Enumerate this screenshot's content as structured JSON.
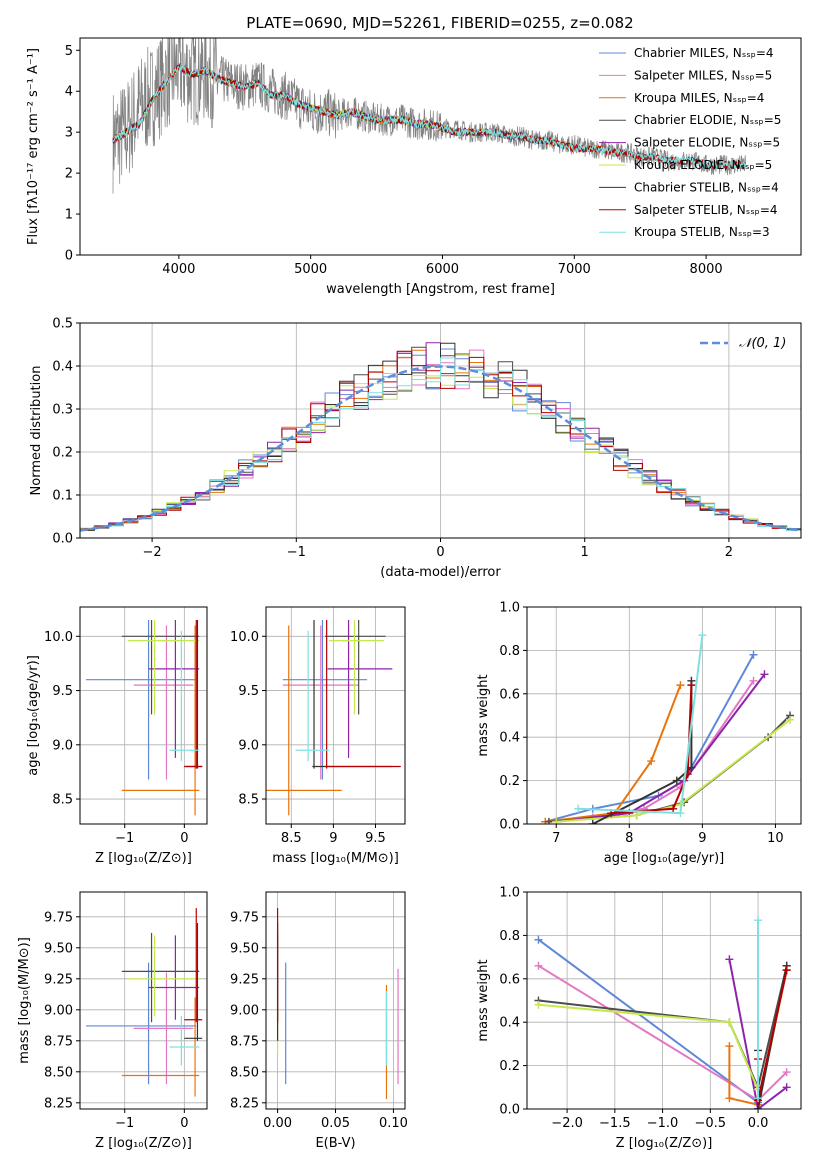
{
  "chart_data": [
    {
      "id": "spectrum",
      "type": "line",
      "title": "PLATE=0690, MJD=52261, FIBERID=0255, z=0.082",
      "xlabel": "wavelength [Angstrom, rest frame]",
      "ylabel": "Flux [fλ10⁻¹⁷ erg cm⁻² s⁻¹ A⁻¹]",
      "xlim": [
        3250,
        8720
      ],
      "ylim": [
        0,
        5.3
      ],
      "xticks": [
        4000,
        5000,
        6000,
        7000,
        8000
      ],
      "yticks": [
        0,
        1,
        2,
        3,
        4,
        5
      ],
      "grid": false,
      "legend_position": "top-right",
      "observed": {
        "name": "",
        "color": "#808080",
        "x": [
          3500,
          3600,
          3700,
          3800,
          3900,
          4000,
          4100,
          4200,
          4300,
          4400,
          4500,
          4600,
          4700,
          4800,
          4900,
          5000,
          5100,
          5200,
          5300,
          5400,
          5500,
          5600,
          5700,
          5800,
          5900,
          6000,
          6100,
          6200,
          6300,
          6400,
          6500,
          6600,
          6700,
          6800,
          6900,
          7000,
          7100,
          7200,
          7300,
          7400,
          7500,
          7600,
          7700,
          7800,
          7900,
          8000,
          8100,
          8200,
          8300
        ],
        "y": [
          2.8,
          3.0,
          3.6,
          3.9,
          4.3,
          4.6,
          4.4,
          4.5,
          4.3,
          4.2,
          4.1,
          4.2,
          4.0,
          3.9,
          3.7,
          3.5,
          3.5,
          3.4,
          3.5,
          3.4,
          3.3,
          3.3,
          3.3,
          3.2,
          3.2,
          3.1,
          3.1,
          3.0,
          3.0,
          3.0,
          2.9,
          2.9,
          2.8,
          2.8,
          2.7,
          2.7,
          2.6,
          2.6,
          2.5,
          2.5,
          2.4,
          2.4,
          2.3,
          2.3,
          2.3,
          2.2,
          2.2,
          2.2,
          2.2
        ]
      },
      "model_x": [
        3500,
        3600,
        3700,
        3800,
        3900,
        4000,
        4100,
        4200,
        4300,
        4400,
        4500,
        4600,
        4700,
        4800,
        4900,
        5000,
        5100,
        5200,
        5300,
        5400,
        5500,
        5600,
        5700,
        5800,
        5900,
        6000,
        6100,
        6200,
        6300,
        6400,
        6500,
        6600,
        6700,
        6800,
        6900,
        7000,
        7100,
        7200,
        7300,
        7400,
        7500,
        7600,
        7700,
        7800,
        7900,
        8000,
        8100,
        8200,
        8300
      ],
      "model_y": [
        2.8,
        3.0,
        3.2,
        3.8,
        4.2,
        4.6,
        4.4,
        4.5,
        4.3,
        4.2,
        4.1,
        4.2,
        3.9,
        3.9,
        3.7,
        3.6,
        3.5,
        3.4,
        3.5,
        3.4,
        3.3,
        3.3,
        3.3,
        3.2,
        3.2,
        3.1,
        3.0,
        3.0,
        3.0,
        3.0,
        2.9,
        2.9,
        2.8,
        2.8,
        2.7,
        2.6,
        2.6,
        2.6,
        2.5,
        2.5,
        2.4,
        2.4,
        2.3,
        2.3,
        2.3,
        2.2,
        2.2,
        2.2,
        2.2
      ],
      "models": [
        {
          "name": "Chabrier MILES, Nₛₛₚ=4",
          "color": "#5f87d8",
          "xmax": 7400
        },
        {
          "name": "Salpeter MILES, Nₛₛₚ=5",
          "color": "#e377c2",
          "xmax": 7400
        },
        {
          "name": "Kroupa MILES, Nₛₛₚ=4",
          "color": "#e8740c",
          "xmax": 7400
        },
        {
          "name": "Chabrier ELODIE, Nₛₛₚ=5",
          "color": "#4d4d4d",
          "xmax": 6800
        },
        {
          "name": "Salpeter ELODIE, Nₛₛₚ=5",
          "color": "#8e24aa",
          "xmax": 6800
        },
        {
          "name": "Kroupa ELODIE, Nₛₛₚ=5",
          "color": "#c6e84f",
          "xmax": 6800
        },
        {
          "name": "Chabrier STELIB, Nₛₛₚ=4",
          "color": "#333333",
          "xmax": 8300
        },
        {
          "name": "Salpeter STELIB, Nₛₛₚ=4",
          "color": "#b40000",
          "xmax": 8300
        },
        {
          "name": "Kroupa STELIB, Nₛₛₚ=3",
          "color": "#7fe0e0",
          "xmax": 8300
        }
      ]
    },
    {
      "id": "residuals",
      "type": "line",
      "xlabel": "(data-model)/error",
      "ylabel": "Normed distribution",
      "xlim": [
        -2.5,
        2.5
      ],
      "ylim": [
        0,
        0.5
      ],
      "xticks": [
        -2,
        -1,
        0,
        1,
        2
      ],
      "yticks": [
        0.0,
        0.1,
        0.2,
        0.3,
        0.4,
        0.5
      ],
      "grid": true,
      "legend_position": "top-right",
      "gaussian": {
        "name": "𝒩(0, 1)",
        "color": "#5b8fd9",
        "mean": 0,
        "sigma": 1
      },
      "bin_width": 0.1,
      "hist_colors": [
        "#5f87d8",
        "#e377c2",
        "#e8740c",
        "#4d4d4d",
        "#8e24aa",
        "#c6e84f",
        "#333333",
        "#b40000",
        "#7fe0e0"
      ]
    },
    {
      "id": "age-vs-Z",
      "type": "scatter",
      "xlabel": "Z [log₁₀(Z/Z⊙)]",
      "ylabel": "age  [log₁₀(age/yr)]",
      "xlim": [
        -1.75,
        0.38
      ],
      "ylim": [
        8.27,
        10.27
      ],
      "xticks": [
        -1,
        0
      ],
      "yticks": [
        8.5,
        9.0,
        9.5,
        10.0
      ],
      "grid": true,
      "points": [
        {
          "x": -0.6,
          "y": 9.6,
          "xlo": -1.65,
          "xhi": 0.2,
          "ylo": 8.68,
          "yhi": 10.15,
          "color": "#5f87d8"
        },
        {
          "x": -0.3,
          "y": 9.55,
          "xlo": -0.85,
          "xhi": 0.15,
          "ylo": 8.68,
          "yhi": 10.1,
          "color": "#e377c2"
        },
        {
          "x": 0.18,
          "y": 8.58,
          "xlo": -1.05,
          "xhi": 0.25,
          "ylo": 8.35,
          "yhi": 10.1,
          "color": "#e8740c"
        },
        {
          "x": -0.55,
          "y": 10.0,
          "xlo": -1.05,
          "xhi": 0.25,
          "ylo": 9.28,
          "yhi": 10.15,
          "color": "#4d4d4d"
        },
        {
          "x": -0.15,
          "y": 9.7,
          "xlo": -0.6,
          "xhi": 0.25,
          "ylo": 8.88,
          "yhi": 10.15,
          "color": "#8e24aa"
        },
        {
          "x": -0.5,
          "y": 9.96,
          "xlo": -0.95,
          "xhi": 0.25,
          "ylo": 9.28,
          "yhi": 10.15,
          "color": "#c6e84f"
        },
        {
          "x": 0.22,
          "y": 8.8,
          "xlo": 0.0,
          "xhi": 0.3,
          "ylo": 8.78,
          "yhi": 10.15,
          "color": "#333333"
        },
        {
          "x": 0.2,
          "y": 8.8,
          "xlo": 0.0,
          "xhi": 0.3,
          "ylo": 8.78,
          "yhi": 10.15,
          "color": "#b40000"
        },
        {
          "x": -0.05,
          "y": 8.95,
          "xlo": -0.25,
          "xhi": 0.25,
          "ylo": 8.85,
          "yhi": 10.05,
          "color": "#7fe0e0"
        }
      ]
    },
    {
      "id": "age-vs-mass",
      "type": "scatter",
      "xlabel": "mass [log₁₀(M/M⊙)]",
      "ylabel": "",
      "xlim": [
        8.2,
        9.85
      ],
      "ylim": [
        8.27,
        10.27
      ],
      "xticks": [
        8.5,
        9.0,
        9.5
      ],
      "yticks": [
        8.5,
        9.0,
        9.5,
        10.0
      ],
      "grid": true,
      "points": [
        {
          "x": 8.87,
          "y": 9.6,
          "xlo": 8.4,
          "xhi": 9.4,
          "ylo": 8.68,
          "yhi": 10.15,
          "color": "#5f87d8"
        },
        {
          "x": 8.85,
          "y": 9.55,
          "xlo": 8.4,
          "xhi": 9.3,
          "ylo": 8.68,
          "yhi": 10.1,
          "color": "#e377c2"
        },
        {
          "x": 8.47,
          "y": 8.58,
          "xlo": 8.2,
          "xhi": 9.1,
          "ylo": 8.35,
          "yhi": 10.1,
          "color": "#e8740c"
        },
        {
          "x": 9.3,
          "y": 10.0,
          "xlo": 8.9,
          "xhi": 9.62,
          "ylo": 9.28,
          "yhi": 10.15,
          "color": "#4d4d4d"
        },
        {
          "x": 9.18,
          "y": 9.7,
          "xlo": 8.93,
          "xhi": 9.7,
          "ylo": 8.88,
          "yhi": 10.15,
          "color": "#8e24aa"
        },
        {
          "x": 9.25,
          "y": 9.96,
          "xlo": 8.95,
          "xhi": 9.6,
          "ylo": 9.28,
          "yhi": 10.15,
          "color": "#c6e84f"
        },
        {
          "x": 8.77,
          "y": 8.8,
          "xlo": 8.75,
          "xhi": 9.7,
          "ylo": 8.78,
          "yhi": 10.15,
          "color": "#333333"
        },
        {
          "x": 8.92,
          "y": 8.8,
          "xlo": 8.9,
          "xhi": 9.8,
          "ylo": 8.78,
          "yhi": 10.15,
          "color": "#b40000"
        },
        {
          "x": 8.7,
          "y": 8.95,
          "xlo": 8.55,
          "xhi": 8.95,
          "ylo": 8.85,
          "yhi": 10.05,
          "color": "#7fe0e0"
        }
      ]
    },
    {
      "id": "massweight-vs-age",
      "type": "line",
      "xlabel": "age  [log₁₀(age/yr)]",
      "ylabel": "mass weight",
      "xlim": [
        6.6,
        10.35
      ],
      "ylim": [
        0,
        1.0
      ],
      "xticks": [
        7,
        8,
        9,
        10
      ],
      "yticks": [
        0.0,
        0.2,
        0.4,
        0.6,
        0.8,
        1.0
      ],
      "grid": true,
      "series": [
        {
          "color": "#5f87d8",
          "x": [
            6.85,
            7.5,
            8.4,
            8.75,
            9.7
          ],
          "y": [
            0.01,
            0.07,
            0.13,
            0.2,
            0.78
          ]
        },
        {
          "color": "#e377c2",
          "x": [
            6.85,
            7.5,
            8.2,
            8.7,
            9.7
          ],
          "y": [
            0.01,
            0.03,
            0.07,
            0.17,
            0.66
          ]
        },
        {
          "color": "#e8740c",
          "x": [
            6.85,
            7.8,
            8.3,
            8.7
          ],
          "y": [
            0.01,
            0.05,
            0.29,
            0.64
          ]
        },
        {
          "color": "#4d4d4d",
          "x": [
            6.9,
            8.1,
            8.75,
            9.9,
            10.2
          ],
          "y": [
            0.01,
            0.04,
            0.1,
            0.4,
            0.5
          ]
        },
        {
          "color": "#8e24aa",
          "x": [
            7.0,
            8.0,
            8.75,
            9.85
          ],
          "y": [
            0.01,
            0.05,
            0.2,
            0.69
          ]
        },
        {
          "color": "#c6e84f",
          "x": [
            7.0,
            8.1,
            8.7,
            10.2
          ],
          "y": [
            0.01,
            0.04,
            0.09,
            0.48
          ]
        },
        {
          "color": "#333333",
          "x": [
            7.5,
            8.65,
            8.85,
            8.85
          ],
          "y": [
            0.0,
            0.2,
            0.26,
            0.66
          ]
        },
        {
          "color": "#b40000",
          "x": [
            7.75,
            8.6,
            8.8,
            8.85
          ],
          "y": [
            0.05,
            0.07,
            0.23,
            0.64
          ]
        },
        {
          "color": "#7fe0e0",
          "x": [
            7.3,
            8.7,
            9.0
          ],
          "y": [
            0.07,
            0.05,
            0.87
          ]
        }
      ]
    },
    {
      "id": "mass-vs-Z",
      "type": "scatter",
      "xlabel": "Z [log₁₀(Z/Z⊙)]",
      "ylabel": "mass [log₁₀(M/M⊙)]",
      "xlim": [
        -1.75,
        0.38
      ],
      "ylim": [
        8.2,
        9.95
      ],
      "xticks": [
        -1,
        0
      ],
      "yticks": [
        8.25,
        8.5,
        8.75,
        9.0,
        9.25,
        9.5,
        9.75
      ],
      "grid": true,
      "points": [
        {
          "x": -0.6,
          "y": 8.87,
          "xlo": -1.65,
          "xhi": 0.2,
          "ylo": 8.4,
          "yhi": 9.38,
          "color": "#5f87d8"
        },
        {
          "x": -0.3,
          "y": 8.85,
          "xlo": -0.85,
          "xhi": 0.15,
          "ylo": 8.4,
          "yhi": 9.3,
          "color": "#e377c2"
        },
        {
          "x": 0.18,
          "y": 8.47,
          "xlo": -1.05,
          "xhi": 0.25,
          "ylo": 8.3,
          "yhi": 9.1,
          "color": "#e8740c"
        },
        {
          "x": -0.55,
          "y": 9.31,
          "xlo": -1.05,
          "xhi": 0.25,
          "ylo": 8.9,
          "yhi": 9.62,
          "color": "#4d4d4d"
        },
        {
          "x": -0.15,
          "y": 9.18,
          "xlo": -0.6,
          "xhi": 0.25,
          "ylo": 8.92,
          "yhi": 9.6,
          "color": "#8e24aa"
        },
        {
          "x": -0.5,
          "y": 9.25,
          "xlo": -0.95,
          "xhi": 0.25,
          "ylo": 8.95,
          "yhi": 9.6,
          "color": "#c6e84f"
        },
        {
          "x": 0.22,
          "y": 8.77,
          "xlo": 0.0,
          "xhi": 0.3,
          "ylo": 8.75,
          "yhi": 9.7,
          "color": "#333333"
        },
        {
          "x": 0.2,
          "y": 8.92,
          "xlo": 0.0,
          "xhi": 0.3,
          "ylo": 8.9,
          "yhi": 9.82,
          "color": "#b40000"
        },
        {
          "x": -0.05,
          "y": 8.7,
          "xlo": -0.25,
          "xhi": 0.25,
          "ylo": 8.55,
          "yhi": 8.95,
          "color": "#7fe0e0"
        }
      ]
    },
    {
      "id": "mass-vs-ebv",
      "type": "scatter",
      "xlabel": "E(B-V)",
      "ylabel": "",
      "xlim": [
        -0.01,
        0.11
      ],
      "ylim": [
        8.2,
        9.95
      ],
      "xticks": [
        0.0,
        0.05,
        0.1
      ],
      "xticklabels": [
        "0.00",
        "0.05",
        "0.10"
      ],
      "yticks": [
        8.25,
        8.5,
        8.75,
        9.0,
        9.25,
        9.5,
        9.75
      ],
      "grid": true,
      "points": [
        {
          "x": 0.007,
          "y": 8.87,
          "ylo": 8.4,
          "yhi": 9.38,
          "color": "#5f87d8"
        },
        {
          "x": 0.104,
          "y": 8.85,
          "ylo": 8.4,
          "yhi": 9.33,
          "color": "#e377c2"
        },
        {
          "x": 0.094,
          "y": 8.7,
          "ylo": 8.28,
          "yhi": 9.2,
          "color": "#e8740c"
        },
        {
          "x": 0.0,
          "y": 9.31,
          "ylo": 8.9,
          "yhi": 9.62,
          "color": "#4d4d4d"
        },
        {
          "x": 0.0,
          "y": 9.18,
          "ylo": 8.92,
          "yhi": 9.6,
          "color": "#8e24aa"
        },
        {
          "x": 0.0,
          "y": 9.25,
          "ylo": 8.65,
          "yhi": 9.6,
          "color": "#c6e84f"
        },
        {
          "x": 0.0,
          "y": 8.77,
          "ylo": 8.75,
          "yhi": 9.7,
          "color": "#333333"
        },
        {
          "x": 0.0,
          "y": 8.92,
          "ylo": 8.9,
          "yhi": 9.82,
          "color": "#b40000"
        },
        {
          "x": 0.094,
          "y": 8.7,
          "ylo": 8.55,
          "yhi": 9.15,
          "color": "#7fe0e0"
        }
      ]
    },
    {
      "id": "massweight-vs-Z",
      "type": "line",
      "xlabel": "Z [log₁₀(Z/Z⊙)]",
      "ylabel": "mass weight",
      "xlim": [
        -2.42,
        0.45
      ],
      "ylim": [
        0,
        1.0
      ],
      "xticks": [
        -2.0,
        -1.5,
        -1.0,
        -0.5,
        0.0
      ],
      "xticklabels": [
        "−2.0",
        "−1.5",
        "−1.0",
        "−0.5",
        "0.0"
      ],
      "yticks": [
        0.0,
        0.2,
        0.4,
        0.6,
        0.8,
        1.0
      ],
      "grid": true,
      "series": [
        {
          "color": "#5f87d8",
          "x": [
            -2.3,
            0.0
          ],
          "y": [
            0.78,
            0.03
          ]
        },
        {
          "color": "#e377c2",
          "x": [
            -2.3,
            0.0,
            0.3
          ],
          "y": [
            0.66,
            0.04,
            0.17
          ]
        },
        {
          "color": "#e8740c",
          "x": [
            -0.3,
            -0.3,
            0.0,
            0.3
          ],
          "y": [
            0.29,
            0.05,
            0.02,
            0.64
          ]
        },
        {
          "color": "#4d4d4d",
          "x": [
            -2.3,
            -0.3,
            0.0,
            0.3
          ],
          "y": [
            0.5,
            0.4,
            0.1,
            0.66
          ]
        },
        {
          "color": "#8e24aa",
          "x": [
            -0.3,
            0.0,
            0.3
          ],
          "y": [
            0.69,
            0.0,
            0.1
          ]
        },
        {
          "color": "#c6e84f",
          "x": [
            -2.3,
            -0.3,
            0.0
          ],
          "y": [
            0.48,
            0.4,
            0.09
          ]
        },
        {
          "color": "#333333",
          "x": [
            0.0,
            0.0,
            0.3
          ],
          "y": [
            0.27,
            0.0,
            0.66
          ]
        },
        {
          "color": "#b40000",
          "x": [
            0.0,
            0.0,
            0.3
          ],
          "y": [
            0.23,
            0.04,
            0.64
          ]
        },
        {
          "color": "#7fe0e0",
          "x": [
            0.0,
            0.0
          ],
          "y": [
            0.87,
            0.05
          ]
        }
      ]
    }
  ]
}
